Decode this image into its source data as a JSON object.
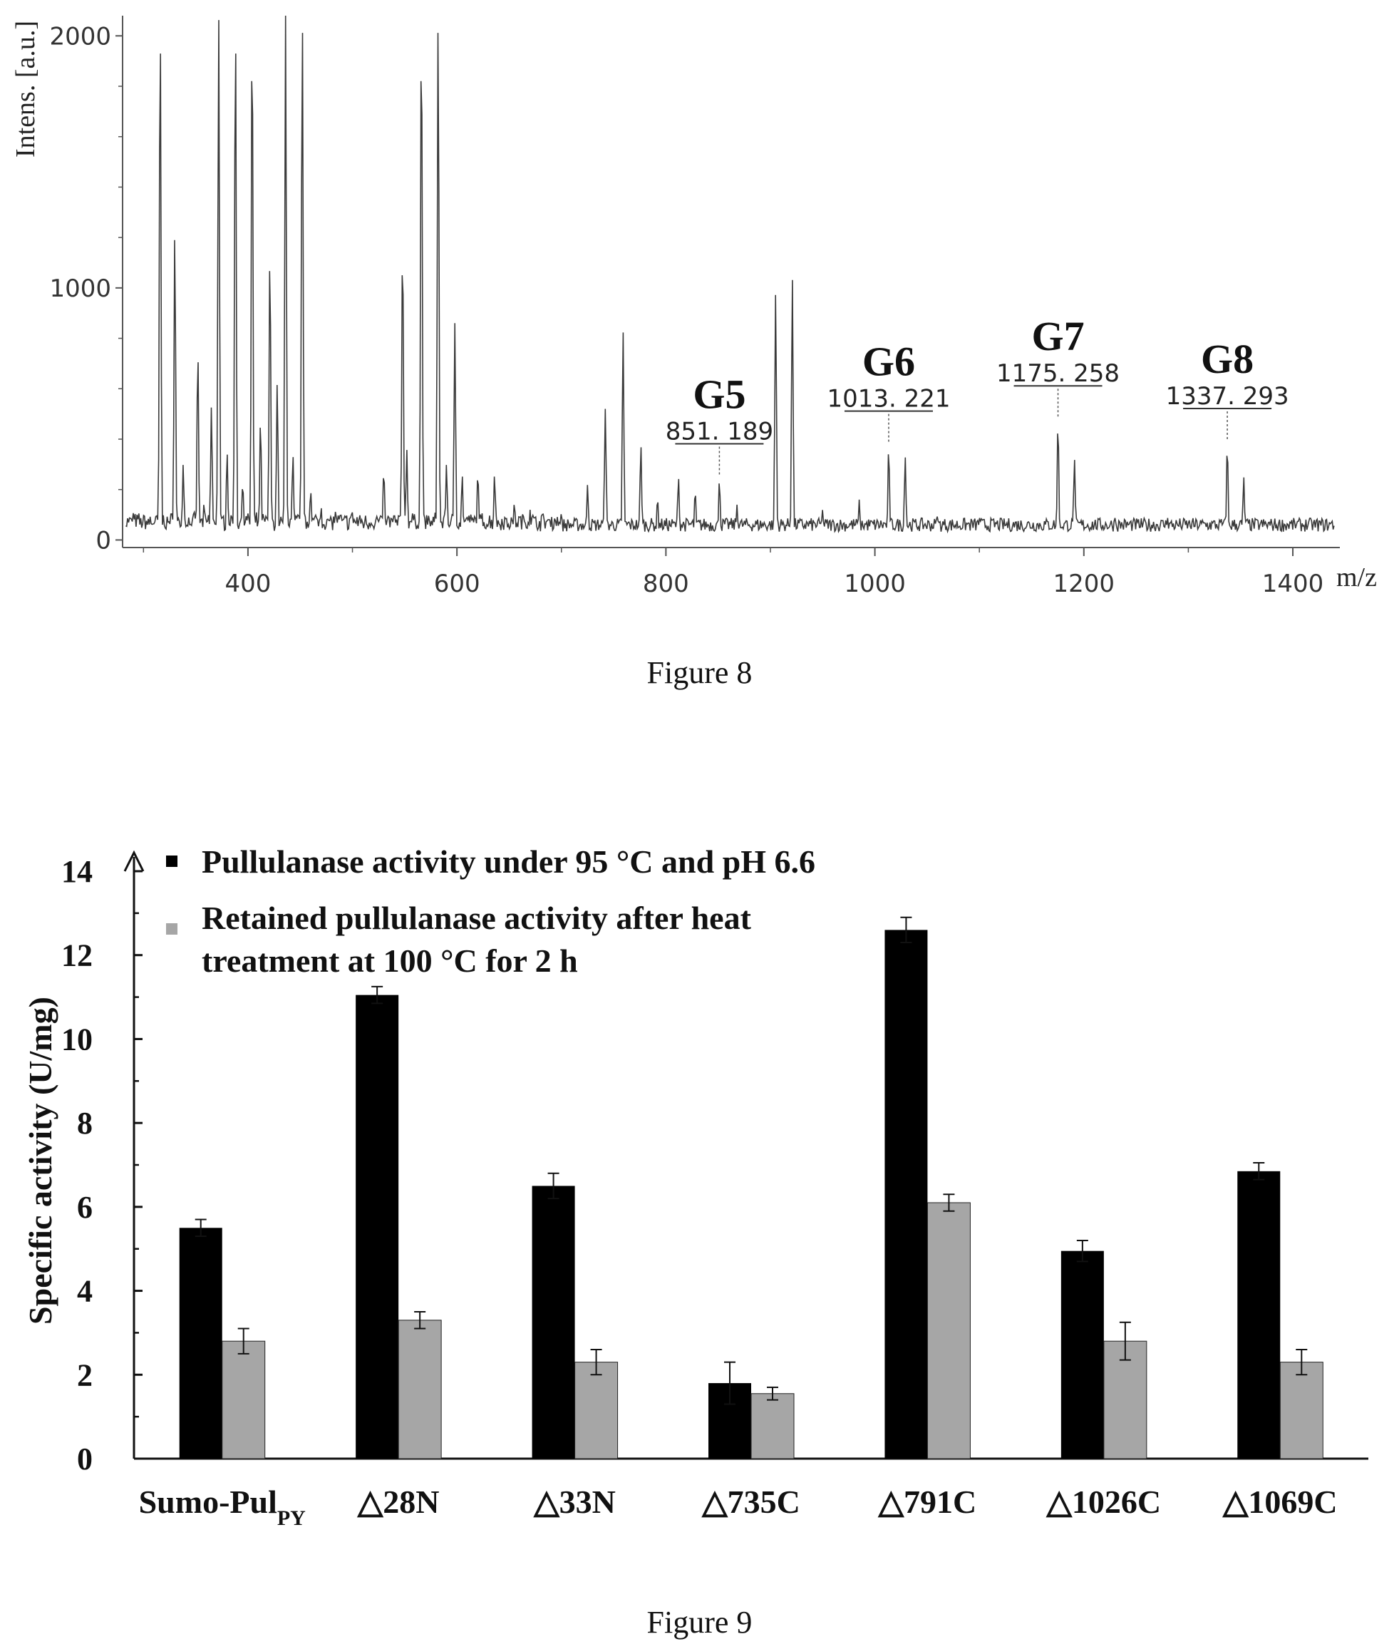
{
  "figures": {
    "fig8": {
      "caption": "Figure 8"
    },
    "fig9": {
      "caption": "Figure 9"
    }
  },
  "colors": {
    "spectrum_line": "#3a3a3a",
    "axis": "#555555",
    "series1_bar": "#000000",
    "series2_bar": "#a6a6a6"
  },
  "chart_data": [
    {
      "type": "line",
      "title": "",
      "xlabel": "m/z",
      "ylabel": "Intens. [a.u.]",
      "xlim": [
        280,
        1445
      ],
      "ylim": [
        -30,
        2080
      ],
      "x_ticks": [
        400,
        600,
        800,
        1000,
        1200,
        1400
      ],
      "y_ticks": [
        0,
        1000,
        2000
      ],
      "grid": false,
      "baseline_level": 60,
      "peaks": [
        {
          "x": 290,
          "y": 110
        },
        {
          "x": 300,
          "y": 90
        },
        {
          "x": 315,
          "y": 280
        },
        {
          "x": 316,
          "y": 2080
        },
        {
          "x": 330,
          "y": 1230
        },
        {
          "x": 338,
          "y": 300
        },
        {
          "x": 352,
          "y": 760
        },
        {
          "x": 358,
          "y": 150
        },
        {
          "x": 365,
          "y": 530
        },
        {
          "x": 372,
          "y": 2080
        },
        {
          "x": 380,
          "y": 350
        },
        {
          "x": 388,
          "y": 2080
        },
        {
          "x": 395,
          "y": 230
        },
        {
          "x": 404,
          "y": 2080
        },
        {
          "x": 412,
          "y": 480
        },
        {
          "x": 421,
          "y": 1150
        },
        {
          "x": 428,
          "y": 620
        },
        {
          "x": 436,
          "y": 2080
        },
        {
          "x": 443,
          "y": 340
        },
        {
          "x": 452,
          "y": 2080
        },
        {
          "x": 460,
          "y": 200
        },
        {
          "x": 470,
          "y": 130
        },
        {
          "x": 484,
          "y": 120
        },
        {
          "x": 500,
          "y": 110
        },
        {
          "x": 530,
          "y": 280
        },
        {
          "x": 548,
          "y": 1200
        },
        {
          "x": 552,
          "y": 360
        },
        {
          "x": 566,
          "y": 2080
        },
        {
          "x": 582,
          "y": 2080
        },
        {
          "x": 590,
          "y": 300
        },
        {
          "x": 598,
          "y": 860
        },
        {
          "x": 605,
          "y": 260
        },
        {
          "x": 620,
          "y": 270
        },
        {
          "x": 636,
          "y": 260
        },
        {
          "x": 655,
          "y": 150
        },
        {
          "x": 670,
          "y": 120
        },
        {
          "x": 700,
          "y": 110
        },
        {
          "x": 725,
          "y": 220
        },
        {
          "x": 742,
          "y": 520
        },
        {
          "x": 759,
          "y": 830
        },
        {
          "x": 776,
          "y": 380
        },
        {
          "x": 792,
          "y": 170
        },
        {
          "x": 812,
          "y": 250
        },
        {
          "x": 828,
          "y": 200
        },
        {
          "x": 851.189,
          "y": 240
        },
        {
          "x": 868,
          "y": 140
        },
        {
          "x": 905,
          "y": 980
        },
        {
          "x": 921,
          "y": 1040
        },
        {
          "x": 950,
          "y": 120
        },
        {
          "x": 985,
          "y": 160
        },
        {
          "x": 1013.221,
          "y": 370
        },
        {
          "x": 1029,
          "y": 330
        },
        {
          "x": 1060,
          "y": 100
        },
        {
          "x": 1100,
          "y": 90
        },
        {
          "x": 1175.258,
          "y": 470
        },
        {
          "x": 1191,
          "y": 320
        },
        {
          "x": 1230,
          "y": 90
        },
        {
          "x": 1280,
          "y": 90
        },
        {
          "x": 1337.293,
          "y": 380
        },
        {
          "x": 1353,
          "y": 250
        }
      ],
      "annotations": [
        {
          "label": "G5",
          "mz": "851. 189",
          "x": 851.189
        },
        {
          "label": "G6",
          "mz": "1013. 221",
          "x": 1013.221
        },
        {
          "label": "G7",
          "mz": "1175. 258",
          "x": 1175.258
        },
        {
          "label": "G8",
          "mz": "1337. 293",
          "x": 1337.293
        }
      ]
    },
    {
      "type": "bar",
      "title": "",
      "xlabel": "",
      "ylabel": "Specific activity (U/mg)",
      "ylim": [
        0,
        14
      ],
      "y_ticks": [
        0,
        2,
        4,
        6,
        8,
        10,
        12,
        14
      ],
      "grid": false,
      "legend_position": "top-left",
      "categories": [
        "Sumo-Pul",
        "△28N",
        "△33N",
        "△735C",
        "△791C",
        "△1026C",
        "△1069C"
      ],
      "category_subscript": [
        "PY",
        "",
        "",
        "",
        "",
        "",
        ""
      ],
      "series": [
        {
          "name": "Pullulanase activity under 95 °C and pH 6.6",
          "values": [
            5.5,
            11.05,
            6.5,
            1.8,
            12.6,
            4.95,
            6.85
          ],
          "errors": [
            0.2,
            0.2,
            0.3,
            0.5,
            0.3,
            0.25,
            0.2
          ]
        },
        {
          "name": "Retained pullulanase activity after heat treatment at 100 °C for 2 h",
          "name_lines": [
            "Retained pullulanase activity after heat",
            "treatment at 100 °C for 2 h"
          ],
          "values": [
            2.8,
            3.3,
            2.3,
            1.55,
            6.1,
            2.8,
            2.3
          ],
          "errors": [
            0.3,
            0.2,
            0.3,
            0.15,
            0.2,
            0.45,
            0.3
          ]
        }
      ]
    }
  ]
}
